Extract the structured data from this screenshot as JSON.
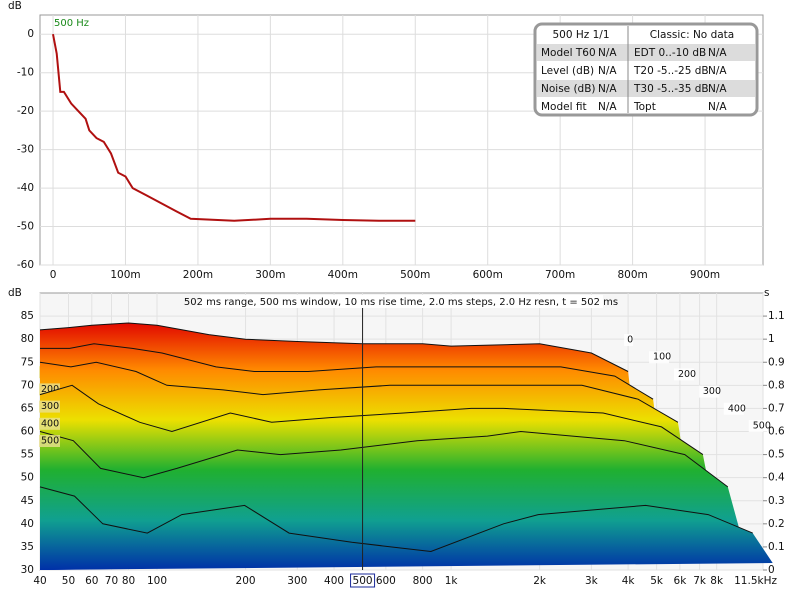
{
  "chart_data": [
    {
      "type": "line",
      "axis_label": "dB",
      "annotation": "500 Hz",
      "x": [
        0,
        0.005,
        0.01,
        0.015,
        0.025,
        0.035,
        0.045,
        0.05,
        0.06,
        0.07,
        0.08,
        0.09,
        0.1,
        0.11,
        0.13,
        0.15,
        0.17,
        0.19,
        0.25,
        0.3,
        0.35,
        0.4,
        0.45,
        0.5
      ],
      "values": [
        0,
        -5,
        -15,
        -15,
        -18,
        -20,
        -22,
        -25,
        -27,
        -28,
        -31,
        -36,
        -37,
        -40,
        -42,
        -44,
        -46,
        -48,
        -48.5,
        -48,
        -48,
        -48.3,
        -48.5,
        -48.5
      ],
      "color": "#b01010",
      "grid": true,
      "xlim": [
        -0.018,
        0.98
      ],
      "xticks": [
        0,
        {
          "value": 0.1,
          "label": "100m"
        },
        {
          "value": 0.2,
          "label": "200m"
        },
        {
          "value": 0.3,
          "label": "300m"
        },
        {
          "value": 0.4,
          "label": "400m"
        },
        {
          "value": 0.5,
          "label": "500m"
        },
        {
          "value": 0.6,
          "label": "600m"
        },
        {
          "value": 0.7,
          "label": "700m"
        },
        {
          "value": 0.8,
          "label": "800m"
        },
        {
          "value": 0.9,
          "label": "900m"
        }
      ],
      "ylim": [
        -60,
        5
      ],
      "yticks": [
        0,
        -10,
        -20,
        -30,
        -40,
        -50,
        -60
      ]
    },
    {
      "type": "waterfall",
      "axis_label": "dB",
      "y2_label": "s",
      "subtitle": "502 ms range, 500 ms window, 10 ms rise time, 2.0 ms steps,  2.0 Hz resn, t = 502 ms",
      "log_x": true,
      "cursor_freq": 500,
      "colormap": [
        "#e00000",
        "#ff8a00",
        "#ece000",
        "#20b030",
        "#10a090",
        "#0030a8"
      ],
      "frequencies": [
        40,
        50,
        60,
        80,
        100,
        150,
        200,
        300,
        500,
        800,
        1000,
        2000,
        3000,
        4000
      ],
      "series": [
        {
          "name": "0",
          "values": [
            82,
            82.5,
            83,
            83.5,
            83,
            81,
            80,
            79.5,
            79,
            79,
            78.5,
            79,
            77,
            73
          ]
        },
        {
          "name": "100",
          "values": [
            78,
            78,
            79,
            78,
            77,
            74,
            73,
            73,
            74,
            74,
            74,
            74,
            72,
            67
          ]
        },
        {
          "name": "200",
          "values": [
            75,
            74,
            75,
            73,
            70,
            69,
            68,
            69,
            70,
            70,
            70,
            70,
            67,
            62
          ]
        },
        {
          "name": "300",
          "values": [
            68,
            70,
            66,
            62,
            60,
            64,
            62,
            63,
            64,
            65,
            65,
            64,
            61,
            55
          ]
        },
        {
          "name": "400",
          "values": [
            60,
            58,
            52,
            50,
            52,
            56,
            55,
            56,
            58,
            59,
            60,
            58,
            55,
            48
          ]
        },
        {
          "name": "500",
          "values": [
            48,
            46,
            40,
            38,
            42,
            44,
            38,
            36,
            34,
            40,
            42,
            44,
            42,
            38
          ]
        }
      ],
      "xlim": [
        40,
        11500
      ],
      "xticks": [
        40,
        50,
        60,
        70,
        80,
        100,
        200,
        300,
        400,
        500,
        600,
        800,
        {
          "value": 1000,
          "label": "1k"
        },
        {
          "value": 2000,
          "label": "2k"
        },
        {
          "value": 3000,
          "label": "3k"
        },
        {
          "value": 4000,
          "label": "4k"
        },
        {
          "value": 5000,
          "label": "5k"
        },
        {
          "value": 6000,
          "label": "6k"
        },
        {
          "value": 7000,
          "label": "7k"
        },
        {
          "value": 8000,
          "label": "8k"
        },
        {
          "value": 11500,
          "label": "11.5kHz"
        }
      ],
      "ylim": [
        30,
        90
      ],
      "yticks": [
        30,
        35,
        40,
        45,
        50,
        55,
        60,
        65,
        70,
        75,
        80,
        85
      ],
      "y2lim": [
        0,
        1.2
      ],
      "y2ticks": [
        0,
        0.1,
        0.2,
        0.3,
        0.4,
        0.5,
        0.6,
        0.7,
        0.8,
        0.9,
        1,
        1.1
      ]
    }
  ],
  "info_table": {
    "header": [
      "500 Hz 1/1",
      "Classic: No data"
    ],
    "rows": [
      [
        "Model T60",
        "N/A",
        "EDT  0..-10 dB",
        "N/A"
      ],
      [
        "Level (dB)",
        "N/A",
        "T20 -5..-25 dB",
        "N/A"
      ],
      [
        "Noise (dB)",
        "N/A",
        "T30 -5..-35 dB",
        "N/A"
      ],
      [
        "Model fit",
        "N/A",
        "Topt",
        "N/A"
      ]
    ]
  }
}
